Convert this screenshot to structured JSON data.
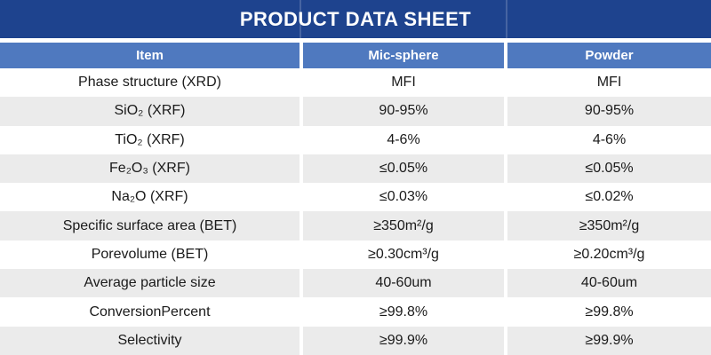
{
  "title": "PRODUCT DATA SHEET",
  "colors": {
    "title_bar": "#1e438e",
    "header_row": "#4f79bf",
    "row_alt": "#ebebeb",
    "row": "#ffffff",
    "header_text": "#ffffff",
    "body_text": "#1a1a1a"
  },
  "table": {
    "columns": [
      "Item",
      "Mic-sphere",
      "Powder"
    ],
    "rows": [
      {
        "item": "Phase structure (XRD)",
        "mic_sphere": "MFI",
        "powder": "MFI"
      },
      {
        "item": "SiO₂ (XRF)",
        "mic_sphere": "90-95%",
        "powder": "90-95%"
      },
      {
        "item": "TiO₂ (XRF)",
        "mic_sphere": "4-6%",
        "powder": "4-6%"
      },
      {
        "item": "Fe₂O₃ (XRF)",
        "mic_sphere": "≤0.05%",
        "powder": "≤0.05%"
      },
      {
        "item": "Na₂O (XRF)",
        "mic_sphere": "≤0.03%",
        "powder": "≤0.02%"
      },
      {
        "item": "Specific surface area (BET)",
        "mic_sphere": "≥350m²/g",
        "powder": "≥350m²/g"
      },
      {
        "item": "Porevolume (BET)",
        "mic_sphere": "≥0.30cm³/g",
        "powder": "≥0.20cm³/g"
      },
      {
        "item": "Average particle size",
        "mic_sphere": "40-60um",
        "powder": "40-60um"
      },
      {
        "item": "ConversionPercent",
        "mic_sphere": "≥99.8%",
        "powder": "≥99.8%"
      },
      {
        "item": "Selectivity",
        "mic_sphere": "≥99.9%",
        "powder": "≥99.9%"
      }
    ]
  }
}
